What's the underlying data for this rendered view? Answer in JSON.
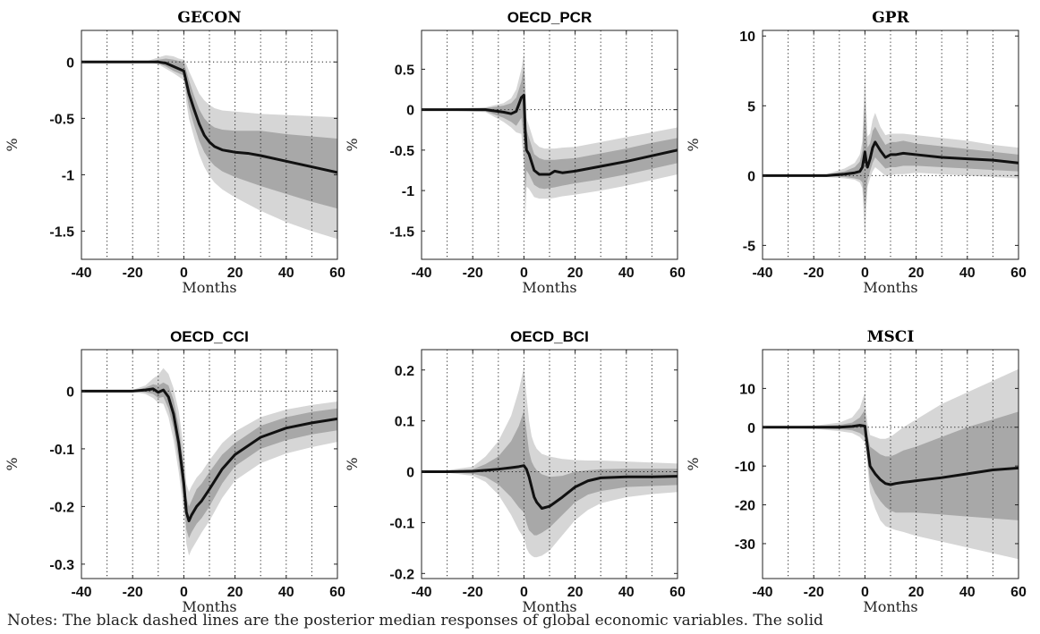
{
  "figure": {
    "notes_text": "Notes: The black dashed lines are the posterior median responses of global economic variables. The solid"
  },
  "chart_data": [
    {
      "type": "line",
      "title": "GECON",
      "title_style": "serif",
      "xlabel": "Months",
      "ylabel": "%",
      "xlim": [
        -40,
        60
      ],
      "ylim": [
        -1.75,
        0.28
      ],
      "xticks": [
        -40,
        -20,
        0,
        20,
        40,
        60
      ],
      "xtick_labels": [
        "-40",
        "-20",
        "0",
        "20",
        "40",
        "60"
      ],
      "yticks": [
        0,
        -0.5,
        -1,
        -1.5
      ],
      "ytick_labels": [
        "0",
        "-0.5",
        "-1",
        "-1.5"
      ],
      "zero_line": 0,
      "grid": "vertical dotted every 10 months",
      "colors": {
        "outer_band": "#d6d6d6",
        "inner_band": "#a8a8a8",
        "median": "#111111"
      },
      "x": [
        -40,
        -20,
        -14,
        -10,
        -7,
        -4,
        -2,
        0,
        1,
        2,
        4,
        6,
        8,
        10,
        12,
        15,
        20,
        25,
        30,
        40,
        50,
        60
      ],
      "median": [
        0,
        0,
        0,
        0,
        -0.01,
        -0.04,
        -0.06,
        -0.08,
        -0.18,
        -0.28,
        -0.42,
        -0.55,
        -0.65,
        -0.71,
        -0.75,
        -0.78,
        -0.8,
        -0.81,
        -0.83,
        -0.88,
        -0.93,
        -0.98
      ],
      "inner_lower": [
        0,
        0,
        0,
        -0.01,
        -0.04,
        -0.08,
        -0.1,
        -0.12,
        -0.28,
        -0.4,
        -0.56,
        -0.7,
        -0.8,
        -0.87,
        -0.92,
        -0.97,
        -1.02,
        -1.06,
        -1.1,
        -1.17,
        -1.24,
        -1.3
      ],
      "inner_upper": [
        0,
        0,
        0,
        0.02,
        0.03,
        0.02,
        0.01,
        0,
        -0.08,
        -0.16,
        -0.3,
        -0.42,
        -0.5,
        -0.55,
        -0.58,
        -0.6,
        -0.61,
        -0.61,
        -0.61,
        -0.64,
        -0.66,
        -0.68
      ],
      "outer_lower": [
        0,
        0,
        0,
        -0.02,
        -0.06,
        -0.1,
        -0.13,
        -0.16,
        -0.36,
        -0.5,
        -0.67,
        -0.82,
        -0.93,
        -1.01,
        -1.07,
        -1.13,
        -1.2,
        -1.26,
        -1.32,
        -1.42,
        -1.5,
        -1.57
      ],
      "outer_upper": [
        0,
        0,
        0.01,
        0.04,
        0.06,
        0.05,
        0.03,
        0.02,
        -0.02,
        -0.08,
        -0.18,
        -0.28,
        -0.34,
        -0.38,
        -0.41,
        -0.43,
        -0.44,
        -0.45,
        -0.46,
        -0.47,
        -0.48,
        -0.49
      ]
    },
    {
      "type": "line",
      "title": "OECD_PCR",
      "title_style": "sans",
      "xlabel": "Months",
      "ylabel": "%",
      "xlim": [
        -40,
        60
      ],
      "ylim": [
        -1.85,
        0.98
      ],
      "xticks": [
        -40,
        -20,
        0,
        20,
        40,
        60
      ],
      "xtick_labels": [
        "-40",
        "-20",
        "0",
        "20",
        "40",
        "60"
      ],
      "yticks": [
        0.5,
        0,
        -0.5,
        -1,
        -1.5
      ],
      "ytick_labels": [
        "0.5",
        "0",
        "-0.5",
        "-1",
        "-1.5"
      ],
      "zero_line": 0,
      "grid": "vertical dotted every 10 months",
      "colors": {
        "outer_band": "#d6d6d6",
        "inner_band": "#a8a8a8",
        "median": "#111111"
      },
      "x": [
        -40,
        -15,
        -8,
        -5,
        -3,
        -1,
        0,
        0.5,
        1,
        2,
        4,
        6,
        8,
        10,
        12,
        15,
        20,
        30,
        40,
        50,
        60
      ],
      "median": [
        0,
        0,
        -0.03,
        -0.05,
        -0.02,
        0.15,
        0.18,
        -0.25,
        -0.5,
        -0.55,
        -0.75,
        -0.8,
        -0.8,
        -0.8,
        -0.76,
        -0.78,
        -0.76,
        -0.7,
        -0.64,
        -0.57,
        -0.5
      ],
      "inner_lower": [
        0,
        -0.02,
        -0.1,
        -0.15,
        -0.2,
        -0.1,
        -0.4,
        -1.1,
        -0.75,
        -0.8,
        -0.93,
        -0.97,
        -0.98,
        -0.97,
        -0.96,
        -0.94,
        -0.91,
        -0.86,
        -0.8,
        -0.73,
        -0.66
      ],
      "inner_upper": [
        0,
        0.02,
        0.05,
        0.08,
        0.15,
        0.35,
        0.55,
        0.2,
        -0.25,
        -0.35,
        -0.55,
        -0.6,
        -0.62,
        -0.62,
        -0.62,
        -0.61,
        -0.6,
        -0.54,
        -0.48,
        -0.41,
        -0.35
      ],
      "outer_lower": [
        0,
        -0.03,
        -0.15,
        -0.22,
        -0.28,
        -0.3,
        -0.7,
        -1.4,
        -0.95,
        -0.98,
        -1.08,
        -1.1,
        -1.1,
        -1.1,
        -1.09,
        -1.07,
        -1.05,
        -1.0,
        -0.94,
        -0.87,
        -0.8
      ],
      "outer_upper": [
        0,
        0.03,
        0.08,
        0.14,
        0.25,
        0.5,
        0.7,
        0.4,
        -0.1,
        -0.2,
        -0.4,
        -0.46,
        -0.48,
        -0.48,
        -0.48,
        -0.47,
        -0.46,
        -0.4,
        -0.34,
        -0.28,
        -0.22
      ]
    },
    {
      "type": "line",
      "title": "GPR",
      "title_style": "serif",
      "xlabel": "Months",
      "ylabel": "%",
      "xlim": [
        -40,
        60
      ],
      "ylim": [
        -6.0,
        10.4
      ],
      "xticks": [
        -40,
        -20,
        0,
        20,
        40,
        60
      ],
      "xtick_labels": [
        "-40",
        "-20",
        "0",
        "20",
        "40",
        "60"
      ],
      "yticks": [
        10,
        5,
        0,
        -5
      ],
      "ytick_labels": [
        "10",
        "5",
        "0",
        "-5"
      ],
      "zero_line": 0,
      "grid": "vertical dotted every 10 months",
      "colors": {
        "outer_band": "#d6d6d6",
        "inner_band": "#a8a8a8",
        "median": "#111111"
      },
      "x": [
        -40,
        -15,
        -8,
        -4,
        -2,
        -1,
        0,
        0.5,
        1,
        2,
        3,
        4,
        6,
        8,
        10,
        12,
        15,
        20,
        30,
        40,
        50,
        60
      ],
      "median": [
        0,
        0,
        0.1,
        0.2,
        0.3,
        0.6,
        1.7,
        1.0,
        0.6,
        1.2,
        2.0,
        2.4,
        1.8,
        1.3,
        1.5,
        1.5,
        1.6,
        1.5,
        1.3,
        1.2,
        1.1,
        0.9
      ],
      "inner_lower": [
        0,
        -0.05,
        -0.1,
        -0.2,
        -0.3,
        -0.5,
        -2.5,
        -1.5,
        -0.3,
        0.3,
        0.9,
        1.3,
        0.9,
        0.5,
        0.6,
        0.6,
        0.7,
        0.7,
        0.6,
        0.5,
        0.4,
        0.3
      ],
      "inner_upper": [
        0,
        0.05,
        0.3,
        0.6,
        1.0,
        1.8,
        5.5,
        3.5,
        2.0,
        2.3,
        3.2,
        3.5,
        2.8,
        2.2,
        2.4,
        2.4,
        2.5,
        2.3,
        2.1,
        1.9,
        1.7,
        1.5
      ],
      "outer_lower": [
        0,
        -0.1,
        -0.2,
        -0.3,
        -0.5,
        -0.9,
        -4.5,
        -2.5,
        -0.8,
        -0.2,
        0.3,
        0.6,
        0.3,
        0.0,
        0.0,
        0.1,
        0.1,
        0.2,
        0.1,
        0.0,
        -0.1,
        -0.2
      ],
      "outer_upper": [
        0,
        0.1,
        0.5,
        0.9,
        1.5,
        2.5,
        7.5,
        5.0,
        2.8,
        3.0,
        4.0,
        4.5,
        3.5,
        2.9,
        3.0,
        3.0,
        3.0,
        2.9,
        2.7,
        2.5,
        2.2,
        2.0
      ]
    },
    {
      "type": "line",
      "title": "OECD_CCI",
      "title_style": "sans",
      "xlabel": "Months",
      "ylabel": "%",
      "xlim": [
        -40,
        60
      ],
      "ylim": [
        -0.325,
        0.072
      ],
      "xticks": [
        -40,
        -20,
        0,
        20,
        40,
        60
      ],
      "xtick_labels": [
        "-40",
        "-20",
        "0",
        "20",
        "40",
        "60"
      ],
      "yticks": [
        0,
        -0.1,
        -0.2,
        -0.3
      ],
      "ytick_labels": [
        "0",
        "-0.1",
        "-0.2",
        "-0.3"
      ],
      "zero_line": 0,
      "grid": "vertical dotted every 10 months",
      "colors": {
        "outer_band": "#d6d6d6",
        "inner_band": "#a8a8a8",
        "median": "#111111"
      },
      "x": [
        -40,
        -20,
        -15,
        -12,
        -10,
        -8,
        -6,
        -4,
        -2,
        0,
        1,
        2,
        3,
        5,
        7,
        10,
        15,
        20,
        30,
        40,
        50,
        60
      ],
      "median": [
        0,
        0,
        0.002,
        0.004,
        -0.002,
        0.002,
        -0.01,
        -0.04,
        -0.09,
        -0.16,
        -0.21,
        -0.225,
        -0.215,
        -0.2,
        -0.19,
        -0.17,
        -0.135,
        -0.11,
        -0.08,
        -0.064,
        -0.055,
        -0.048
      ],
      "inner_lower": [
        0,
        0,
        -0.002,
        -0.005,
        -0.012,
        -0.01,
        -0.03,
        -0.065,
        -0.12,
        -0.19,
        -0.24,
        -0.255,
        -0.245,
        -0.23,
        -0.22,
        -0.2,
        -0.16,
        -0.13,
        -0.1,
        -0.085,
        -0.075,
        -0.068
      ],
      "inner_upper": [
        0,
        0.001,
        0.006,
        0.012,
        0.01,
        0.015,
        0.01,
        -0.015,
        -0.06,
        -0.13,
        -0.185,
        -0.2,
        -0.19,
        -0.17,
        -0.16,
        -0.14,
        -0.11,
        -0.09,
        -0.06,
        -0.045,
        -0.036,
        -0.03
      ],
      "outer_lower": [
        0,
        -0.001,
        -0.005,
        -0.012,
        -0.02,
        -0.022,
        -0.045,
        -0.085,
        -0.14,
        -0.21,
        -0.265,
        -0.285,
        -0.275,
        -0.26,
        -0.245,
        -0.225,
        -0.185,
        -0.155,
        -0.125,
        -0.108,
        -0.097,
        -0.088
      ],
      "outer_upper": [
        0,
        0.002,
        0.01,
        0.022,
        0.028,
        0.04,
        0.03,
        0.005,
        -0.035,
        -0.1,
        -0.16,
        -0.175,
        -0.165,
        -0.15,
        -0.14,
        -0.12,
        -0.09,
        -0.07,
        -0.045,
        -0.032,
        -0.024,
        -0.018
      ]
    },
    {
      "type": "line",
      "title": "OECD_BCI",
      "title_style": "sans",
      "xlabel": "Months",
      "ylabel": "%",
      "xlim": [
        -40,
        60
      ],
      "ylim": [
        -0.21,
        0.24
      ],
      "xticks": [
        -40,
        -20,
        0,
        20,
        40,
        60
      ],
      "xtick_labels": [
        "-40",
        "-20",
        "0",
        "20",
        "40",
        "60"
      ],
      "yticks": [
        0.2,
        0.1,
        0,
        -0.1,
        -0.2
      ],
      "ytick_labels": [
        "0.2",
        "0.1",
        "0",
        "-0.1",
        "-0.2"
      ],
      "zero_line": 0,
      "grid": "vertical dotted every 10 months",
      "colors": {
        "outer_band": "#d6d6d6",
        "inner_band": "#a8a8a8",
        "median": "#111111"
      },
      "x": [
        -40,
        -30,
        -20,
        -15,
        -10,
        -5,
        -2,
        0,
        1,
        2,
        3,
        4,
        5,
        7,
        10,
        15,
        20,
        25,
        30,
        40,
        50,
        60
      ],
      "median": [
        0,
        0,
        0.001,
        0.003,
        0.005,
        0.008,
        0.01,
        0.012,
        0.005,
        -0.01,
        -0.03,
        -0.05,
        -0.06,
        -0.072,
        -0.068,
        -0.05,
        -0.03,
        -0.018,
        -0.012,
        -0.01,
        -0.01,
        -0.009
      ],
      "inner_lower": [
        0,
        -0.001,
        -0.004,
        -0.01,
        -0.025,
        -0.05,
        -0.07,
        -0.08,
        -0.1,
        -0.115,
        -0.12,
        -0.125,
        -0.125,
        -0.12,
        -0.11,
        -0.085,
        -0.06,
        -0.045,
        -0.038,
        -0.03,
        -0.028,
        -0.026
      ],
      "inner_upper": [
        0,
        0.001,
        0.005,
        0.015,
        0.03,
        0.06,
        0.09,
        0.12,
        0.08,
        0.04,
        0.02,
        0.01,
        0.003,
        -0.005,
        -0.01,
        -0.008,
        0.0,
        0.003,
        0.005,
        0.006,
        0.006,
        0.006
      ],
      "outer_lower": [
        0,
        -0.002,
        -0.008,
        -0.02,
        -0.045,
        -0.085,
        -0.115,
        -0.13,
        -0.15,
        -0.16,
        -0.165,
        -0.168,
        -0.168,
        -0.165,
        -0.155,
        -0.125,
        -0.095,
        -0.075,
        -0.062,
        -0.05,
        -0.044,
        -0.04
      ],
      "outer_upper": [
        0,
        0.003,
        0.01,
        0.03,
        0.06,
        0.11,
        0.16,
        0.205,
        0.15,
        0.1,
        0.07,
        0.055,
        0.045,
        0.035,
        0.03,
        0.025,
        0.023,
        0.022,
        0.022,
        0.02,
        0.018,
        0.016
      ]
    },
    {
      "type": "line",
      "title": "MSCI",
      "title_style": "serif",
      "xlabel": "Months",
      "ylabel": "%",
      "xlim": [
        -40,
        60
      ],
      "ylim": [
        -39,
        20
      ],
      "xticks": [
        -40,
        -20,
        0,
        20,
        40,
        60
      ],
      "xtick_labels": [
        "-40",
        "-20",
        "0",
        "20",
        "40",
        "60"
      ],
      "yticks": [
        10,
        0,
        -10,
        -20,
        -30
      ],
      "ytick_labels": [
        "10",
        "0",
        "-10",
        "-20",
        "-30"
      ],
      "zero_line": 0,
      "grid": "vertical dotted every 10 months",
      "colors": {
        "outer_band": "#d6d6d6",
        "inner_band": "#a8a8a8",
        "median": "#111111"
      },
      "x": [
        -40,
        -20,
        -10,
        -5,
        -2,
        0,
        0.5,
        1,
        2,
        4,
        6,
        8,
        10,
        12,
        15,
        20,
        30,
        40,
        50,
        60
      ],
      "median": [
        0,
        0,
        0,
        0.2,
        0.5,
        0.3,
        -2.5,
        -5,
        -10,
        -12,
        -13.5,
        -14.5,
        -14.8,
        -14.5,
        -14.2,
        -13.8,
        -13,
        -12,
        -11,
        -10.5
      ],
      "inner_lower": [
        0,
        -0.2,
        -0.5,
        -0.8,
        -1.5,
        -2.5,
        -5,
        -8,
        -14,
        -17,
        -19,
        -20.5,
        -21.5,
        -22,
        -22,
        -22,
        -22.5,
        -23,
        -23.5,
        -24
      ],
      "inner_upper": [
        0,
        0.2,
        0.6,
        1.2,
        2.5,
        4.5,
        1,
        -2,
        -5,
        -6,
        -7,
        -7.5,
        -7.5,
        -7,
        -6,
        -5,
        -2.5,
        0,
        2,
        4
      ],
      "outer_lower": [
        0,
        -0.4,
        -1,
        -1.5,
        -2.5,
        -4,
        -7,
        -10,
        -17,
        -21,
        -24,
        -25.5,
        -26,
        -26.5,
        -27,
        -28,
        -29.5,
        -31,
        -32.5,
        -34
      ],
      "outer_upper": [
        0,
        0.4,
        1.2,
        2.5,
        5,
        9,
        4,
        1,
        -2,
        -2.5,
        -3,
        -3,
        -2.5,
        -1.5,
        0,
        2,
        6,
        9,
        12,
        15
      ]
    }
  ]
}
